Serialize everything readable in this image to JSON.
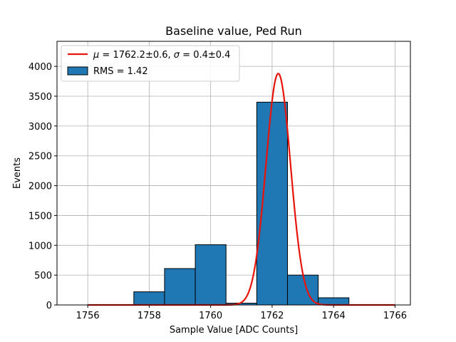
{
  "chart_data": {
    "type": "bar",
    "title": "Baseline value, Ped Run",
    "xlabel": "Sample Value [ADC Counts]",
    "ylabel": "Events",
    "xlim": [
      1755.0,
      1766.5
    ],
    "ylim": [
      0,
      4420
    ],
    "x_ticks": [
      1756,
      1758,
      1760,
      1762,
      1764,
      1766
    ],
    "y_ticks": [
      0,
      500,
      1000,
      1500,
      2000,
      2500,
      3000,
      3500,
      4000
    ],
    "grid": true,
    "legend_placement": "upper-left",
    "histogram": {
      "bins": [
        [
          1755.5,
          1756.5,
          0
        ],
        [
          1756.5,
          1757.5,
          0
        ],
        [
          1757.5,
          1758.5,
          220
        ],
        [
          1758.5,
          1759.5,
          610
        ],
        [
          1759.5,
          1760.5,
          1010
        ],
        [
          1760.5,
          1761.5,
          30
        ],
        [
          1761.5,
          1762.5,
          3400
        ],
        [
          1762.5,
          1763.5,
          500
        ],
        [
          1763.5,
          1764.5,
          120
        ],
        [
          1764.5,
          1765.5,
          0
        ],
        [
          1765.5,
          1766.0,
          0
        ]
      ],
      "color": "#1f77b4"
    },
    "fit": {
      "type": "gaussian",
      "mu": 1762.2,
      "sigma": 0.4,
      "amplitude": 3880,
      "x_range": [
        1756,
        1766
      ],
      "color": "#e8140c"
    },
    "legend": [
      {
        "kind": "line",
        "color": "#e8140c",
        "mu_value": "1762.2±0.6",
        "sigma_value": "0.4±0.4"
      },
      {
        "kind": "patch",
        "color": "#1f77b4",
        "label": "RMS = 1.42"
      }
    ]
  }
}
